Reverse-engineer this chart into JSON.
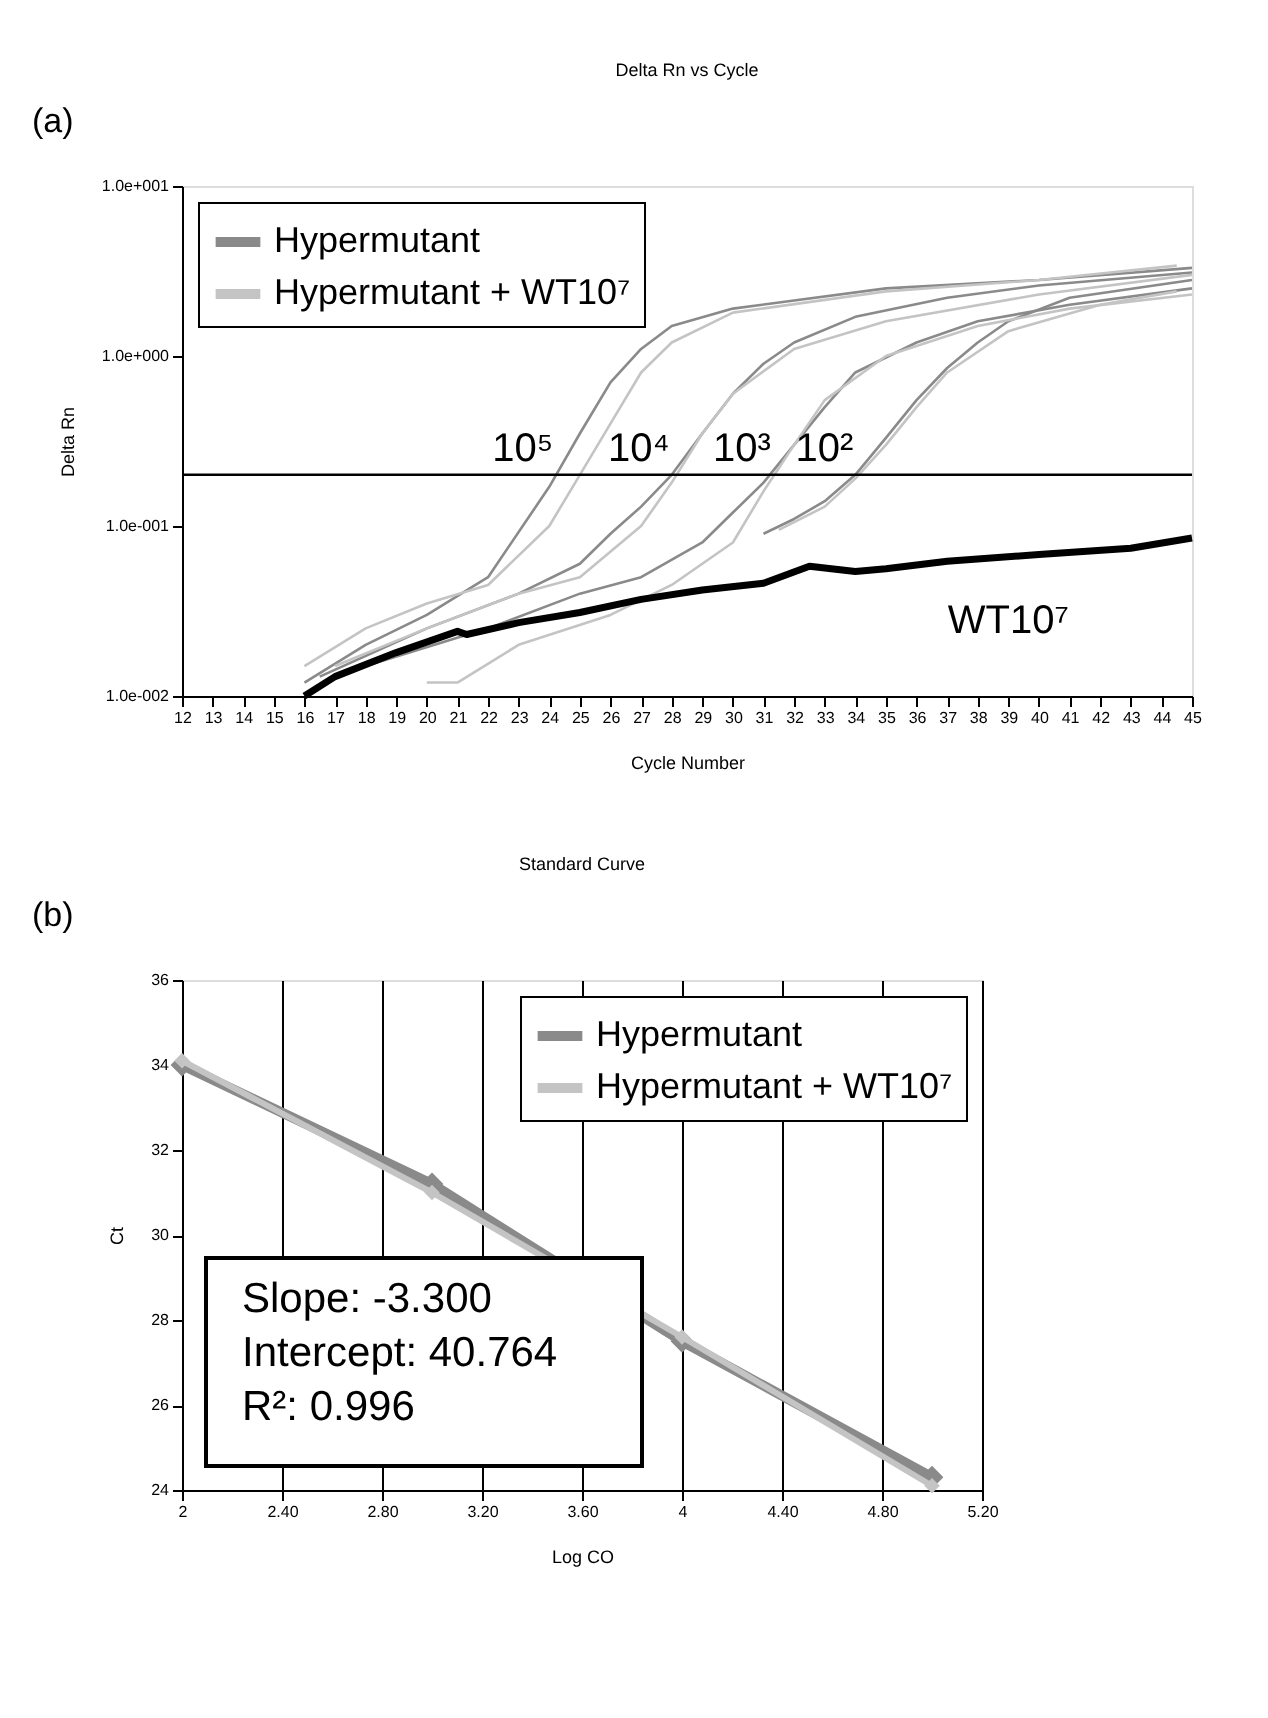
{
  "chart_data": [
    {
      "type": "line",
      "title": "Delta Rn vs Cycle",
      "xlabel": "Cycle Number",
      "ylabel": "Delta Rn",
      "log": "y",
      "xlim": [
        12,
        45
      ],
      "ylim": [
        0.01,
        10
      ],
      "xticks": [
        12,
        13,
        14,
        15,
        16,
        17,
        18,
        19,
        20,
        21,
        22,
        23,
        24,
        25,
        26,
        27,
        28,
        29,
        30,
        31,
        32,
        33,
        34,
        35,
        36,
        37,
        38,
        39,
        40,
        41,
        42,
        43,
        44,
        45
      ],
      "yticks": [
        {
          "value": 0.01,
          "label": "1.0e-002"
        },
        {
          "value": 0.1,
          "label": "1.0e-001"
        },
        {
          "value": 1,
          "label": "1.0e+000"
        },
        {
          "value": 10,
          "label": "1.0e+001"
        }
      ],
      "legend": "top left",
      "grid": false,
      "series": [
        {
          "name": "Hypermutant",
          "color": "#8a8a8a",
          "x": [
            16,
            18,
            20,
            22,
            24,
            25,
            26,
            27,
            28,
            30,
            35,
            40,
            45
          ],
          "values": [
            0.012,
            0.02,
            0.03,
            0.05,
            0.17,
            0.35,
            0.7,
            1.1,
            1.5,
            1.9,
            2.5,
            2.8,
            3.3
          ]
        },
        {
          "color": "#8a8a8a",
          "x": [
            16.5,
            20,
            23,
            25,
            26,
            27,
            28,
            29,
            30,
            31,
            32,
            34,
            37,
            40,
            45
          ],
          "values": [
            0.013,
            0.025,
            0.04,
            0.06,
            0.09,
            0.13,
            0.2,
            0.35,
            0.6,
            0.9,
            1.2,
            1.7,
            2.2,
            2.6,
            3.1
          ]
        },
        {
          "color": "#8a8a8a",
          "x": [
            18,
            22,
            25,
            27,
            29,
            30,
            31,
            32,
            33,
            34,
            36,
            38,
            41,
            45
          ],
          "values": [
            0.015,
            0.025,
            0.04,
            0.05,
            0.08,
            0.12,
            0.18,
            0.3,
            0.5,
            0.8,
            1.2,
            1.6,
            2.0,
            2.5
          ]
        },
        {
          "color": "#8a8a8a",
          "x": [
            31,
            32,
            33,
            34,
            35,
            36,
            37,
            38,
            39,
            41,
            45
          ],
          "values": [
            0.09,
            0.11,
            0.14,
            0.2,
            0.33,
            0.55,
            0.85,
            1.2,
            1.6,
            2.2,
            2.8
          ]
        },
        {
          "name": "Hypermutant + WT10⁷",
          "color": "#c4c4c4",
          "x": [
            16,
            18,
            20,
            22,
            24,
            25,
            26,
            27,
            28,
            30,
            35,
            40,
            44.5
          ],
          "values": [
            0.015,
            0.025,
            0.035,
            0.045,
            0.1,
            0.2,
            0.4,
            0.8,
            1.2,
            1.8,
            2.4,
            2.8,
            3.4
          ]
        },
        {
          "color": "#c4c4c4",
          "x": [
            17,
            20,
            23,
            25,
            27,
            28,
            29,
            30,
            32,
            35,
            40,
            45
          ],
          "values": [
            0.015,
            0.025,
            0.04,
            0.05,
            0.1,
            0.18,
            0.35,
            0.6,
            1.1,
            1.6,
            2.3,
            3.0
          ]
        },
        {
          "color": "#c4c4c4",
          "x": [
            20,
            21,
            23,
            26,
            28,
            30,
            31,
            32,
            33,
            35,
            38,
            41,
            45
          ],
          "values": [
            0.012,
            0.012,
            0.02,
            0.03,
            0.045,
            0.08,
            0.16,
            0.3,
            0.55,
            1.0,
            1.5,
            1.9,
            2.3
          ]
        },
        {
          "color": "#c4c4c4",
          "x": [
            31.5,
            33,
            34,
            35,
            36,
            37,
            39,
            42,
            44.5
          ],
          "values": [
            0.095,
            0.13,
            0.19,
            0.3,
            0.5,
            0.8,
            1.4,
            2.0,
            2.4
          ]
        },
        {
          "color": "#000000",
          "x": [
            16,
            17,
            19,
            21,
            21.3,
            23,
            25,
            27,
            29,
            31,
            32.5,
            34,
            35,
            37,
            40,
            43,
            45
          ],
          "values": [
            0.01,
            0.013,
            0.018,
            0.024,
            0.023,
            0.027,
            0.031,
            0.037,
            0.042,
            0.046,
            0.058,
            0.054,
            0.056,
            0.062,
            0.068,
            0.074,
            0.085
          ]
        }
      ],
      "ref_lines": [
        {
          "axis": "y",
          "value": 0.2,
          "color": "#000000"
        }
      ],
      "annotations": [
        "(a)",
        {
          "text": "10⁵",
          "x": 24.2,
          "y": 0.2
        },
        {
          "text": "10⁴",
          "x": 28,
          "y": 0.2
        },
        {
          "text": "10³",
          "x": 31.3,
          "y": 0.2
        },
        {
          "text": "10²",
          "x": 34,
          "y": 0.2
        },
        {
          "text": "WT10⁷",
          "x": 39,
          "y": 0.066
        }
      ]
    },
    {
      "type": "line",
      "title": "Standard Curve",
      "xlabel": "Log CO",
      "ylabel": "Ct",
      "xlim": [
        2,
        5.2
      ],
      "ylim": [
        24,
        36
      ],
      "xticks": [
        2,
        {
          "value": 2.4,
          "label": "2.40"
        },
        {
          "value": 2.8,
          "label": "2.80"
        },
        {
          "value": 3.2,
          "label": "3.20"
        },
        {
          "value": 3.6,
          "label": "3.60"
        },
        4,
        {
          "value": 4.4,
          "label": "4.40"
        },
        {
          "value": 4.8,
          "label": "4.80"
        },
        {
          "value": 5.2,
          "label": "5.20"
        }
      ],
      "yticks": [
        24,
        26,
        28,
        30,
        32,
        34,
        36
      ],
      "grid": "x",
      "legend": "top right",
      "marker": "diamond",
      "series": [
        {
          "name": "Hypermutant",
          "color": "#8a8a8a",
          "x": [
            2,
            3,
            4,
            5
          ],
          "values": [
            34.0,
            31.2,
            27.5,
            24.3
          ]
        },
        {
          "name": "Hypermutant + WT10⁷",
          "color": "#c4c4c4",
          "x": [
            2,
            3,
            4,
            5
          ],
          "values": [
            34.1,
            31.0,
            27.6,
            24.1
          ]
        }
      ],
      "annotations": [
        "(b)",
        "Slope: -3.300",
        "Intercept: 40.764",
        "R²: 0.996"
      ]
    }
  ]
}
